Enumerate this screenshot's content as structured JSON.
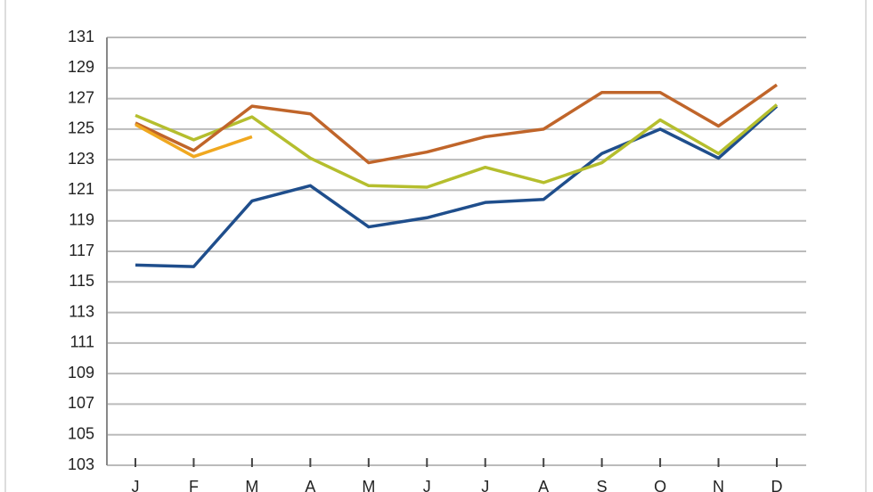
{
  "chart_data": {
    "type": "line",
    "categories": [
      "J",
      "F",
      "M",
      "A",
      "M",
      "J",
      "J",
      "A",
      "S",
      "O",
      "N",
      "D"
    ],
    "series": [
      {
        "color": "#1f4e8c",
        "values": [
          116.1,
          116.0,
          120.3,
          121.3,
          118.6,
          119.2,
          120.2,
          120.4,
          123.4,
          125.0,
          123.1,
          126.5
        ]
      },
      {
        "color": "#b5be2e",
        "values": [
          125.9,
          124.3,
          125.8,
          123.1,
          121.3,
          121.2,
          122.5,
          121.5,
          122.8,
          125.6,
          123.4,
          126.6
        ]
      },
      {
        "color": "#c0652a",
        "values": [
          125.4,
          123.6,
          126.5,
          126.0,
          122.8,
          123.5,
          124.5,
          125.0,
          127.4,
          127.4,
          125.2,
          127.9
        ]
      },
      {
        "color": "#f0a820",
        "values": [
          125.3,
          123.2,
          124.5,
          null,
          null,
          null,
          null,
          null,
          null,
          null,
          null,
          null
        ]
      }
    ],
    "ylim": [
      103,
      131
    ],
    "yticks": [
      103,
      105,
      107,
      109,
      111,
      113,
      115,
      117,
      119,
      121,
      123,
      125,
      127,
      129,
      131
    ],
    "grid": true
  }
}
